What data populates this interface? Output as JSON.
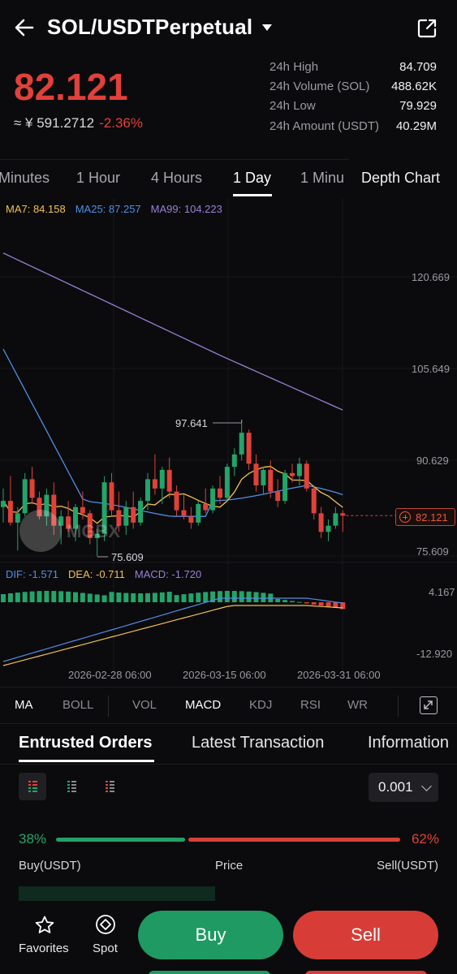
{
  "header": {
    "pair": "SOL/USDTPerpetual",
    "last_price": "82.121",
    "cny_price": "≈ ¥ 591.2712",
    "change": "-2.36%",
    "stats": [
      {
        "label": "24h High",
        "value": "84.709"
      },
      {
        "label": "24h Volume (SOL)",
        "value": "488.62K"
      },
      {
        "label": "24h Low",
        "value": "79.929"
      },
      {
        "label": "24h Amount (USDT)",
        "value": "40.29M"
      }
    ]
  },
  "intervals": [
    "Minutes",
    "1 Hour",
    "4 Hours",
    "1 Day",
    "1 Minu"
  ],
  "active_interval": "1 Day",
  "depth_chart_label": "Depth Chart",
  "chart_data": {
    "type": "candlestick",
    "ma_legend": {
      "ma7": "MA7: 84.158",
      "ma25": "MA25: 87.257",
      "ma99": "MA99: 104.223"
    },
    "y_ticks": [
      "120.669",
      "105.649",
      "90.629",
      "75.609"
    ],
    "x_ticks": [
      "2026-02-28 06:00",
      "2026-03-15 06:00",
      "2026-03-31 06:00"
    ],
    "current_price": "82.121",
    "high_label": "97.641",
    "low_label": "75.609",
    "watermark": "MGBX",
    "macd_legend": {
      "dif": "DIF: -1.571",
      "dea": "DEA: -0.711",
      "macd": "MACD: -1.720"
    },
    "macd_ticks": [
      "4.167",
      "-12.920"
    ],
    "candles": [
      [
        83.5,
        86.5,
        81.0,
        84.5
      ],
      [
        84.5,
        88.5,
        80.5,
        81.0
      ],
      [
        81.0,
        83.5,
        76.5,
        82.5
      ],
      [
        82.5,
        89.0,
        82.0,
        88.0
      ],
      [
        88.0,
        90.0,
        84.0,
        85.0
      ],
      [
        85.0,
        86.0,
        81.5,
        82.0
      ],
      [
        82.0,
        86.5,
        80.5,
        85.5
      ],
      [
        85.5,
        87.5,
        79.0,
        80.5
      ],
      [
        80.5,
        83.0,
        77.5,
        82.0
      ],
      [
        82.0,
        84.5,
        79.5,
        80.0
      ],
      [
        80.0,
        84.0,
        78.0,
        83.5
      ],
      [
        83.5,
        86.0,
        81.5,
        82.5
      ],
      [
        82.5,
        83.0,
        77.5,
        78.5
      ],
      [
        78.5,
        80.0,
        75.6,
        79.2
      ],
      [
        79.2,
        88.5,
        78.0,
        87.5
      ],
      [
        87.5,
        89.0,
        82.0,
        83.0
      ],
      [
        83.0,
        86.0,
        79.5,
        80.5
      ],
      [
        80.5,
        84.5,
        79.0,
        83.5
      ],
      [
        83.5,
        86.0,
        80.0,
        81.0
      ],
      [
        81.0,
        85.0,
        80.5,
        84.5
      ],
      [
        84.5,
        89.0,
        83.0,
        88.0
      ],
      [
        88.0,
        92.0,
        85.5,
        86.5
      ],
      [
        86.5,
        90.0,
        84.0,
        89.5
      ],
      [
        89.5,
        91.5,
        85.0,
        86.0
      ],
      [
        86.0,
        87.0,
        82.0,
        83.0
      ],
      [
        83.0,
        85.5,
        81.5,
        82.0
      ],
      [
        82.0,
        83.5,
        80.0,
        81.0
      ],
      [
        81.0,
        84.5,
        80.5,
        84.0
      ],
      [
        84.0,
        86.5,
        82.5,
        83.0
      ],
      [
        83.0,
        87.0,
        82.5,
        86.5
      ],
      [
        86.5,
        88.5,
        84.0,
        85.0
      ],
      [
        85.0,
        90.5,
        84.5,
        90.0
      ],
      [
        90.0,
        93.0,
        88.5,
        92.0
      ],
      [
        92.0,
        97.6,
        91.0,
        95.5
      ],
      [
        95.5,
        96.0,
        89.5,
        90.5
      ],
      [
        90.5,
        92.0,
        86.0,
        87.0
      ],
      [
        87.0,
        90.0,
        85.5,
        89.5
      ],
      [
        89.5,
        91.0,
        85.0,
        86.0
      ],
      [
        86.0,
        88.0,
        83.5,
        84.5
      ],
      [
        84.5,
        89.5,
        84.0,
        89.0
      ],
      [
        89.0,
        90.5,
        87.5,
        88.5
      ],
      [
        88.5,
        91.5,
        87.0,
        90.5
      ],
      [
        90.5,
        91.0,
        86.0,
        86.5
      ],
      [
        86.5,
        87.0,
        81.5,
        82.5
      ],
      [
        82.5,
        83.5,
        78.5,
        79.5
      ],
      [
        79.5,
        81.5,
        78.0,
        80.5
      ],
      [
        80.5,
        83.5,
        80.0,
        82.5
      ],
      [
        82.5,
        83.0,
        79.5,
        82.121
      ]
    ]
  },
  "indicators": [
    "MA",
    "BOLL",
    "VOL",
    "MACD",
    "KDJ",
    "RSI",
    "WR"
  ],
  "active_main_indicator": "MA",
  "active_sub_indicator": "MACD",
  "order_tabs": [
    "Entrusted Orders",
    "Latest Transaction",
    "Information"
  ],
  "precision": "0.001",
  "ratio": {
    "buy": "38%",
    "sell": "62%",
    "buy_fraction": 0.38
  },
  "book": {
    "buy_header": "Buy(USDT)",
    "price_header": "Price",
    "sell_header": "Sell(USDT)"
  },
  "actions": {
    "favorites": "Favorites",
    "spot": "Spot",
    "buy": "Buy",
    "sell": "Sell"
  },
  "colors": {
    "up": "#22a46a",
    "down": "#e0413a",
    "ma7": "#f2c14e",
    "ma25": "#4f8fe6",
    "ma99": "#9a7fd8"
  }
}
